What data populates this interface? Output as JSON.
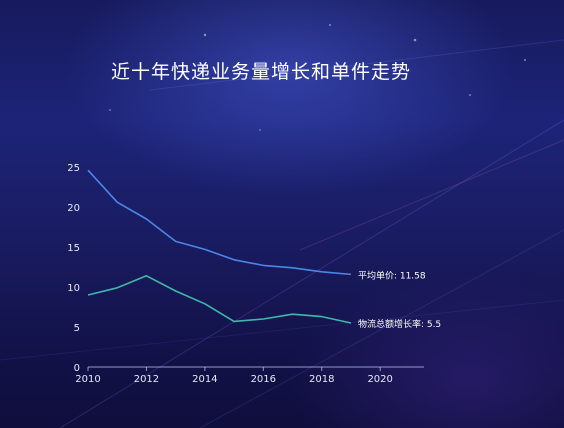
{
  "chart_data": {
    "type": "line",
    "title": "近十年快递业务量增长和单件走势",
    "xlabel": "",
    "ylabel": "",
    "x": [
      2010,
      2011,
      2012,
      2013,
      2014,
      2015,
      2016,
      2017,
      2018,
      2019
    ],
    "xlim": [
      2010,
      2021.5
    ],
    "ylim": [
      0,
      25
    ],
    "x_ticks": [
      "2010",
      "2012",
      "2014",
      "2016",
      "2018",
      "2020"
    ],
    "y_ticks": [
      "0",
      "5",
      "10",
      "15",
      "20",
      "25"
    ],
    "grid": false,
    "series": [
      {
        "values": [
          24.6,
          20.6,
          18.5,
          15.7,
          14.7,
          13.4,
          12.7,
          12.4,
          11.9,
          11.58
        ],
        "color": "#4a86e8",
        "end_label": "平均单价: 11.58"
      },
      {
        "values": [
          9.0,
          9.9,
          11.4,
          9.5,
          7.9,
          5.7,
          6.0,
          6.6,
          6.3,
          5.5
        ],
        "color": "#3fb8a8",
        "end_label": "物流总额增长率: 5.5"
      }
    ]
  }
}
